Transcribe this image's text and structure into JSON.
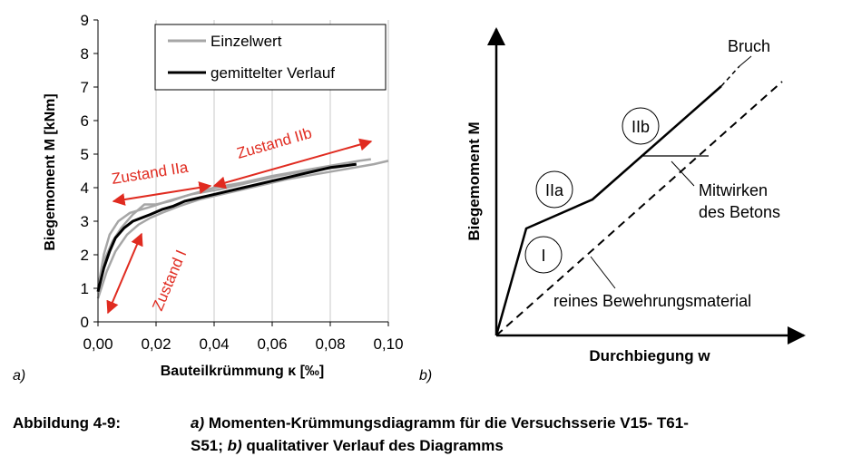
{
  "chart_data": [
    {
      "type": "line",
      "panel_label": "a)",
      "xlabel": "Bauteilkrümmung κ [‰]",
      "ylabel": "Biegemoment M [kNm]",
      "xlim": [
        0,
        0.1
      ],
      "ylim": [
        0,
        9
      ],
      "x_ticks": [
        "0,00",
        "0,02",
        "0,04",
        "0,06",
        "0,08",
        "0,10"
      ],
      "y_ticks": [
        "0",
        "1",
        "2",
        "3",
        "4",
        "5",
        "6",
        "7",
        "8",
        "9"
      ],
      "grid": "vertical",
      "legend": "top-right",
      "series": [
        {
          "name": "Einzelwert",
          "color": "#a6a6a6",
          "curves": [
            {
              "x": [
                0,
                0.002,
                0.005,
                0.008,
                0.012,
                0.016,
                0.02,
                0.025,
                0.03,
                0.04,
                0.05,
                0.06,
                0.07,
                0.08,
                0.09,
                0.094
              ],
              "y": [
                0.9,
                1.8,
                2.4,
                2.8,
                3.2,
                3.5,
                3.5,
                3.6,
                3.75,
                4.0,
                4.15,
                4.35,
                4.5,
                4.65,
                4.8,
                4.85
              ]
            },
            {
              "x": [
                0,
                0.003,
                0.006,
                0.01,
                0.014,
                0.018,
                0.022,
                0.028,
                0.035,
                0.045,
                0.055,
                0.065,
                0.075,
                0.085,
                0.095,
                0.1
              ],
              "y": [
                0.7,
                1.5,
                2.1,
                2.6,
                2.9,
                3.1,
                3.25,
                3.45,
                3.65,
                3.85,
                4.05,
                4.25,
                4.4,
                4.55,
                4.7,
                4.8
              ]
            },
            {
              "x": [
                0,
                0.002,
                0.004,
                0.007,
                0.011,
                0.015,
                0.019,
                0.024,
                0.032,
                0.042,
                0.052,
                0.062,
                0.072,
                0.082,
                0.088
              ],
              "y": [
                1.0,
                2.0,
                2.6,
                3.0,
                3.25,
                3.35,
                3.45,
                3.6,
                3.8,
                3.95,
                4.15,
                4.35,
                4.5,
                4.6,
                4.7
              ]
            }
          ]
        },
        {
          "name": "gemittelter Verlauf",
          "color": "#000000",
          "x": [
            0,
            0.002,
            0.004,
            0.006,
            0.009,
            0.012,
            0.015,
            0.018,
            0.022,
            0.026,
            0.03,
            0.035,
            0.04,
            0.045,
            0.05,
            0.055,
            0.06,
            0.065,
            0.07,
            0.075,
            0.08,
            0.085,
            0.089
          ],
          "y": [
            0.9,
            1.6,
            2.1,
            2.5,
            2.8,
            3.0,
            3.1,
            3.2,
            3.35,
            3.45,
            3.6,
            3.7,
            3.8,
            3.9,
            4.0,
            4.1,
            4.2,
            4.3,
            4.4,
            4.5,
            4.6,
            4.65,
            4.7
          ]
        }
      ],
      "annotations": {
        "color": "#e02b20",
        "zustand_i": "Zustand I",
        "zustand_iia": "Zustand IIa",
        "zustand_iib": "Zustand IIb"
      }
    },
    {
      "type": "diagram",
      "panel_label": "b)",
      "xlabel": "Durchbiegung w",
      "ylabel": "Biegemoment M",
      "regions": [
        "I",
        "IIa",
        "IIb"
      ],
      "labels": {
        "bruch": "Bruch",
        "mitwirken": [
          "Mitwirken",
          "des Betons"
        ],
        "reines": "reines Bewehrungsmaterial"
      }
    }
  ],
  "caption": {
    "label": "Abbildung 4-9:",
    "part_a_marker": "a)",
    "part_a_text": " Momenten-Krümmungsdiagramm für die Versuchsserie V15- T61-",
    "line2_start": "S51; ",
    "part_b_marker": "b)",
    "part_b_text": " qualitativer Verlauf des Diagramms"
  }
}
